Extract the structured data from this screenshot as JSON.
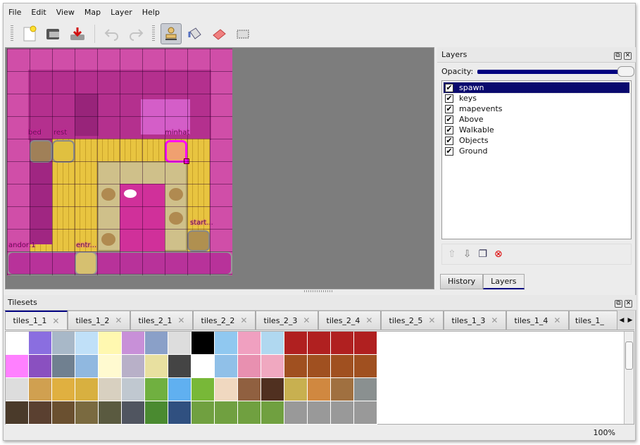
{
  "menu": [
    "File",
    "Edit",
    "View",
    "Map",
    "Layer",
    "Help"
  ],
  "toolbar": [
    {
      "name": "new-file",
      "icon": "new-document-icon"
    },
    {
      "name": "open-file",
      "icon": "folder-open-icon"
    },
    {
      "name": "save-file",
      "icon": "save-download-icon"
    },
    {
      "name": "undo",
      "icon": "undo-icon",
      "disabled": true
    },
    {
      "name": "redo",
      "icon": "redo-icon",
      "disabled": true
    },
    {
      "name": "stamp-brush",
      "icon": "stamp-icon",
      "active": true
    },
    {
      "name": "bucket-fill",
      "icon": "paint-bucket-icon"
    },
    {
      "name": "eraser",
      "icon": "eraser-icon"
    },
    {
      "name": "rect-select",
      "icon": "rectangle-select-icon"
    }
  ],
  "map": {
    "labels": [
      "bed",
      "rest",
      "minhat",
      "start...",
      "andor:1",
      "entr..."
    ],
    "colors": {
      "wall": "#d04ea8",
      "floor": "#e6c23c",
      "rug": "#c9b86a",
      "selection": "#ff00ff"
    }
  },
  "layers_panel": {
    "title": "Layers",
    "opacity_label": "Opacity:",
    "opacity": 100,
    "layers": [
      {
        "name": "spawn",
        "visible": true,
        "selected": true
      },
      {
        "name": "keys",
        "visible": true
      },
      {
        "name": "mapevents",
        "visible": true
      },
      {
        "name": "Above",
        "visible": true
      },
      {
        "name": "Walkable",
        "visible": true
      },
      {
        "name": "Objects",
        "visible": true
      },
      {
        "name": "Ground",
        "visible": true
      }
    ],
    "buttons": [
      "raise-layer-icon",
      "lower-layer-icon",
      "duplicate-layer-icon",
      "delete-layer-icon"
    ],
    "tabs": [
      "History",
      "Layers"
    ],
    "active_tab": "Layers"
  },
  "tilesets": {
    "title": "Tilesets",
    "tabs": [
      "tiles_1_1",
      "tiles_1_2",
      "tiles_2_1",
      "tiles_2_2",
      "tiles_2_3",
      "tiles_2_4",
      "tiles_2_5",
      "tiles_1_3",
      "tiles_1_4",
      "tiles_1_"
    ],
    "active_tab": "tiles_1_1"
  },
  "status": {
    "zoom": "100%"
  },
  "colors": {
    "accent": "#000080"
  }
}
